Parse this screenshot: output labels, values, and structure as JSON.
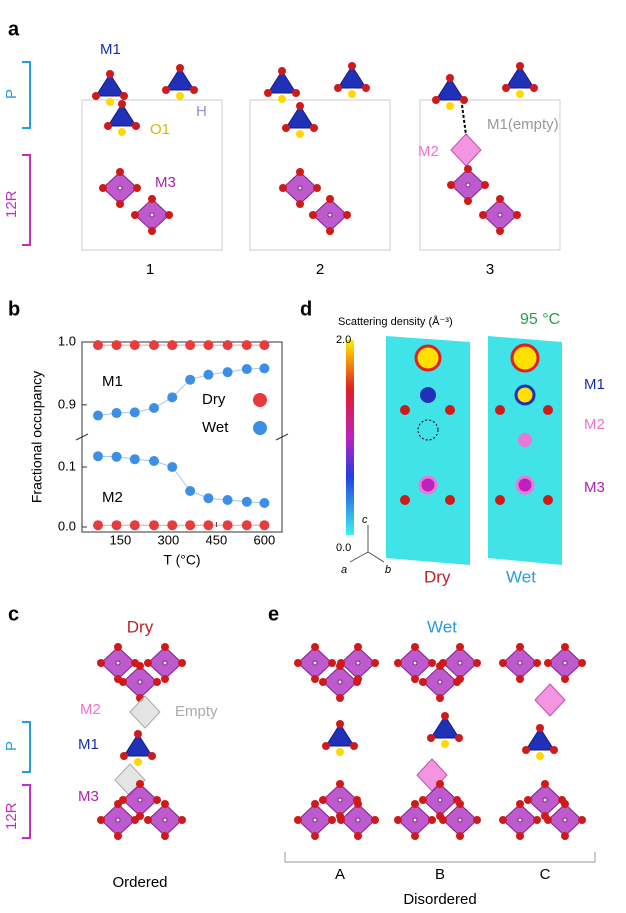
{
  "panel_a": {
    "label": "a",
    "m1": "M1",
    "p": "P",
    "o1": "O1",
    "h": "H",
    "r12": "12R",
    "m3": "M3",
    "m2": "M2",
    "m1_empty": "M1(empty)",
    "steps": [
      "1",
      "2",
      "3"
    ]
  },
  "panel_b": {
    "label": "b"
  },
  "chart_data": [
    {
      "type": "line",
      "y_label": "Fractional occupancy",
      "annotation": "M1",
      "legend": "right",
      "x": [
        80,
        138,
        195,
        255,
        312,
        368,
        425,
        485,
        545,
        600
      ],
      "xlim": [
        30,
        655
      ],
      "ylim": [
        0.86,
        1.0
      ],
      "yticks": [
        0.9,
        {
          "value": 1.0,
          "label": "1.0"
        }
      ],
      "series": [
        {
          "name": "Dry",
          "color": "#e83b3b",
          "values": [
            0.995,
            0.995,
            0.995,
            0.995,
            0.995,
            0.995,
            0.995,
            0.995,
            0.995,
            0.995
          ]
        },
        {
          "name": "Wet",
          "color": "#3d8fe6",
          "values": [
            0.883,
            0.887,
            0.888,
            0.895,
            0.912,
            0.94,
            0.948,
            0.952,
            0.957,
            0.958
          ]
        }
      ]
    },
    {
      "type": "line",
      "x_label": "T (°C)",
      "annotation": "M2",
      "x": [
        80,
        138,
        195,
        255,
        312,
        368,
        425,
        485,
        545,
        600
      ],
      "xlim": [
        30,
        655
      ],
      "ylim": [
        0,
        0.14
      ],
      "xticks": [
        150,
        300,
        450,
        600
      ],
      "yticks": [
        {
          "value": 0,
          "label": "0.0"
        },
        0.1
      ],
      "series": [
        {
          "name": "Dry",
          "color": "#e83b3b",
          "values": [
            0.003,
            0.003,
            0.003,
            0.003,
            0.003,
            0.003,
            0.003,
            0.003,
            0.003,
            0.003
          ]
        },
        {
          "name": "Wet",
          "color": "#3d8fe6",
          "values": [
            0.118,
            0.117,
            0.113,
            0.11,
            0.1,
            0.06,
            0.048,
            0.045,
            0.042,
            0.04
          ]
        }
      ]
    }
  ],
  "panel_c": {
    "label": "c",
    "title": "Dry",
    "m2": "M2",
    "empty": "Empty",
    "p": "P",
    "m1": "M1",
    "r12": "12R",
    "m3": "M3",
    "caption": "Ordered"
  },
  "panel_d": {
    "label": "d",
    "colorbar_title": "Scattering density (Å⁻³)",
    "temperature": "95 °C",
    "cmax": "2.0",
    "cmin": "0.0",
    "m1": "M1",
    "m2": "M2",
    "m3": "M3",
    "axis_c": "c",
    "axis_a": "a",
    "axis_b": "b",
    "dry": "Dry",
    "wet": "Wet"
  },
  "panel_e": {
    "label": "e",
    "title": "Wet",
    "columns": [
      "A",
      "B",
      "C"
    ],
    "caption": "Disordered"
  }
}
